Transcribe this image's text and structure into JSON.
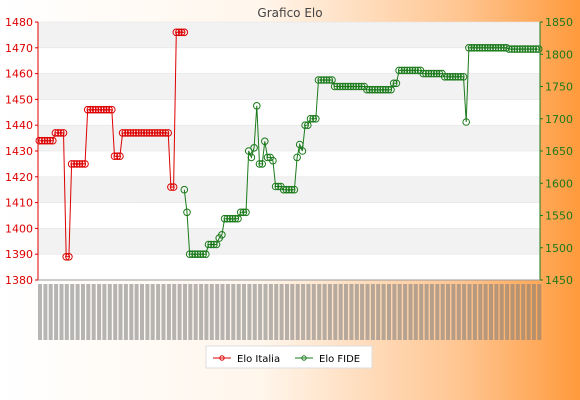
{
  "window": {
    "title": "Grafico Elo"
  },
  "colors": {
    "italia": "#dd0000",
    "fide": "#1b7a1b",
    "left_axis": "#dd0000",
    "right_axis": "#1b7a1b",
    "band": "#f2f2f2",
    "title": "#444444"
  },
  "chart_data": {
    "type": "line",
    "title": "Grafico Elo",
    "xlabel": "",
    "ylabel": "",
    "x_tick_labels": "dense, illegible date labels (rotated)",
    "grid": true,
    "legend_position": "bottom-center",
    "y_left": {
      "series": "Elo Italia",
      "ylim": [
        1380,
        1480
      ],
      "ticks": [
        1380,
        1390,
        1400,
        1410,
        1420,
        1430,
        1440,
        1450,
        1460,
        1470,
        1480
      ]
    },
    "y_right": {
      "series": "Elo FIDE",
      "ylim": [
        1450,
        1850
      ],
      "ticks": [
        1450,
        1500,
        1550,
        1600,
        1650,
        1700,
        1750,
        1800,
        1850
      ]
    },
    "series": [
      {
        "name": "Elo Italia",
        "axis": "left",
        "values": [
          1434,
          1434,
          1434,
          1434,
          1434,
          1434,
          1437,
          1437,
          1437,
          1437,
          1389,
          1389,
          1425,
          1425,
          1425,
          1425,
          1425,
          1425,
          1446,
          1446,
          1446,
          1446,
          1446,
          1446,
          1446,
          1446,
          1446,
          1446,
          1428,
          1428,
          1428,
          1437,
          1437,
          1437,
          1437,
          1437,
          1437,
          1437,
          1437,
          1437,
          1437,
          1437,
          1437,
          1437,
          1437,
          1437,
          1437,
          1437,
          1437,
          1416,
          1416,
          1476,
          1476,
          1476,
          1476
        ]
      },
      {
        "name": "Elo FIDE",
        "axis": "right",
        "start_index": 54,
        "values": [
          1590,
          1555,
          1490,
          1490,
          1490,
          1490,
          1490,
          1490,
          1490,
          1505,
          1505,
          1505,
          1505,
          1515,
          1520,
          1545,
          1545,
          1545,
          1545,
          1545,
          1545,
          1555,
          1555,
          1555,
          1650,
          1640,
          1655,
          1720,
          1630,
          1630,
          1665,
          1640,
          1640,
          1635,
          1595,
          1595,
          1595,
          1590,
          1590,
          1590,
          1590,
          1590,
          1640,
          1660,
          1650,
          1690,
          1690,
          1700,
          1700,
          1700,
          1760,
          1760,
          1760,
          1760,
          1760,
          1760,
          1750,
          1750,
          1750,
          1750,
          1750,
          1750,
          1750,
          1750,
          1750,
          1750,
          1750,
          1750,
          1745,
          1745,
          1745,
          1745,
          1745,
          1745,
          1745,
          1745,
          1745,
          1745,
          1755,
          1755,
          1775,
          1775,
          1775,
          1775,
          1775,
          1775,
          1775,
          1775,
          1775,
          1770,
          1770,
          1770,
          1770,
          1770,
          1770,
          1770,
          1770,
          1765,
          1765,
          1765,
          1765,
          1765,
          1765,
          1765,
          1765,
          1695,
          1810,
          1810,
          1810,
          1810,
          1810,
          1810,
          1810,
          1810,
          1810,
          1810,
          1810,
          1810,
          1810,
          1810,
          1810,
          1808,
          1808,
          1808,
          1808,
          1808,
          1808,
          1808,
          1808,
          1808,
          1808,
          1808,
          1808
        ]
      }
    ]
  }
}
